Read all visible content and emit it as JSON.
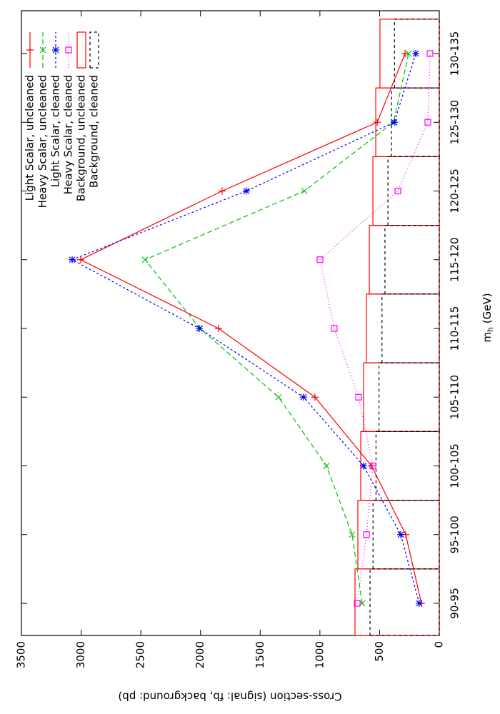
{
  "chart_data": {
    "type": "line",
    "y_label": "Cross-section (signal: fb, background: pb)",
    "x_label_parts": [
      "m",
      "h",
      " (GeV)"
    ],
    "categories": [
      "90-95",
      "95-100",
      "100-105",
      "105-110",
      "110-115",
      "115-120",
      "120-125",
      "125-130",
      "130-135"
    ],
    "ylim": [
      0,
      3500
    ],
    "yticks": [
      0,
      500,
      1000,
      1500,
      2000,
      2500,
      3000,
      3500
    ],
    "legend": "top right",
    "series": [
      {
        "name": "Light Scalar, uncleaned",
        "kind": "linespoints",
        "marker": "plus",
        "color": "#ff0000",
        "dash": "none",
        "values": [
          150,
          281,
          568,
          1041,
          1849,
          3004,
          1819,
          520,
          287
        ]
      },
      {
        "name": "Heavy Scalar, uncleaned",
        "kind": "linespoints",
        "marker": "cross",
        "color": "#00c000",
        "dash": "7,4",
        "values": [
          646,
          730,
          945,
          1346,
          2004,
          2465,
          1131,
          383,
          257
        ]
      },
      {
        "name": "Light Scalar, cleaned",
        "kind": "linespoints",
        "marker": "star",
        "color": "#0000ff",
        "dash": "3,3",
        "values": [
          168,
          323,
          634,
          1137,
          2010,
          3075,
          1616,
          377,
          197
        ]
      },
      {
        "name": "Heavy Scalar, cleaned",
        "kind": "linespoints",
        "marker": "square",
        "color": "#ff00ff",
        "dash": "1,3",
        "values": [
          688,
          610,
          556,
          676,
          880,
          999,
          347,
          96,
          78
        ]
      },
      {
        "name": "Background, uncleaned",
        "kind": "boxes",
        "color": "#ff0000",
        "dash": "none",
        "values": [
          706,
          682,
          658,
          634,
          610,
          586,
          556,
          532,
          497
        ]
      },
      {
        "name": "Background, cleaned",
        "kind": "boxes",
        "color": "#000000",
        "dash": "4,4",
        "values": [
          580,
          555,
          530,
          505,
          480,
          455,
          430,
          400,
          375
        ]
      }
    ]
  }
}
